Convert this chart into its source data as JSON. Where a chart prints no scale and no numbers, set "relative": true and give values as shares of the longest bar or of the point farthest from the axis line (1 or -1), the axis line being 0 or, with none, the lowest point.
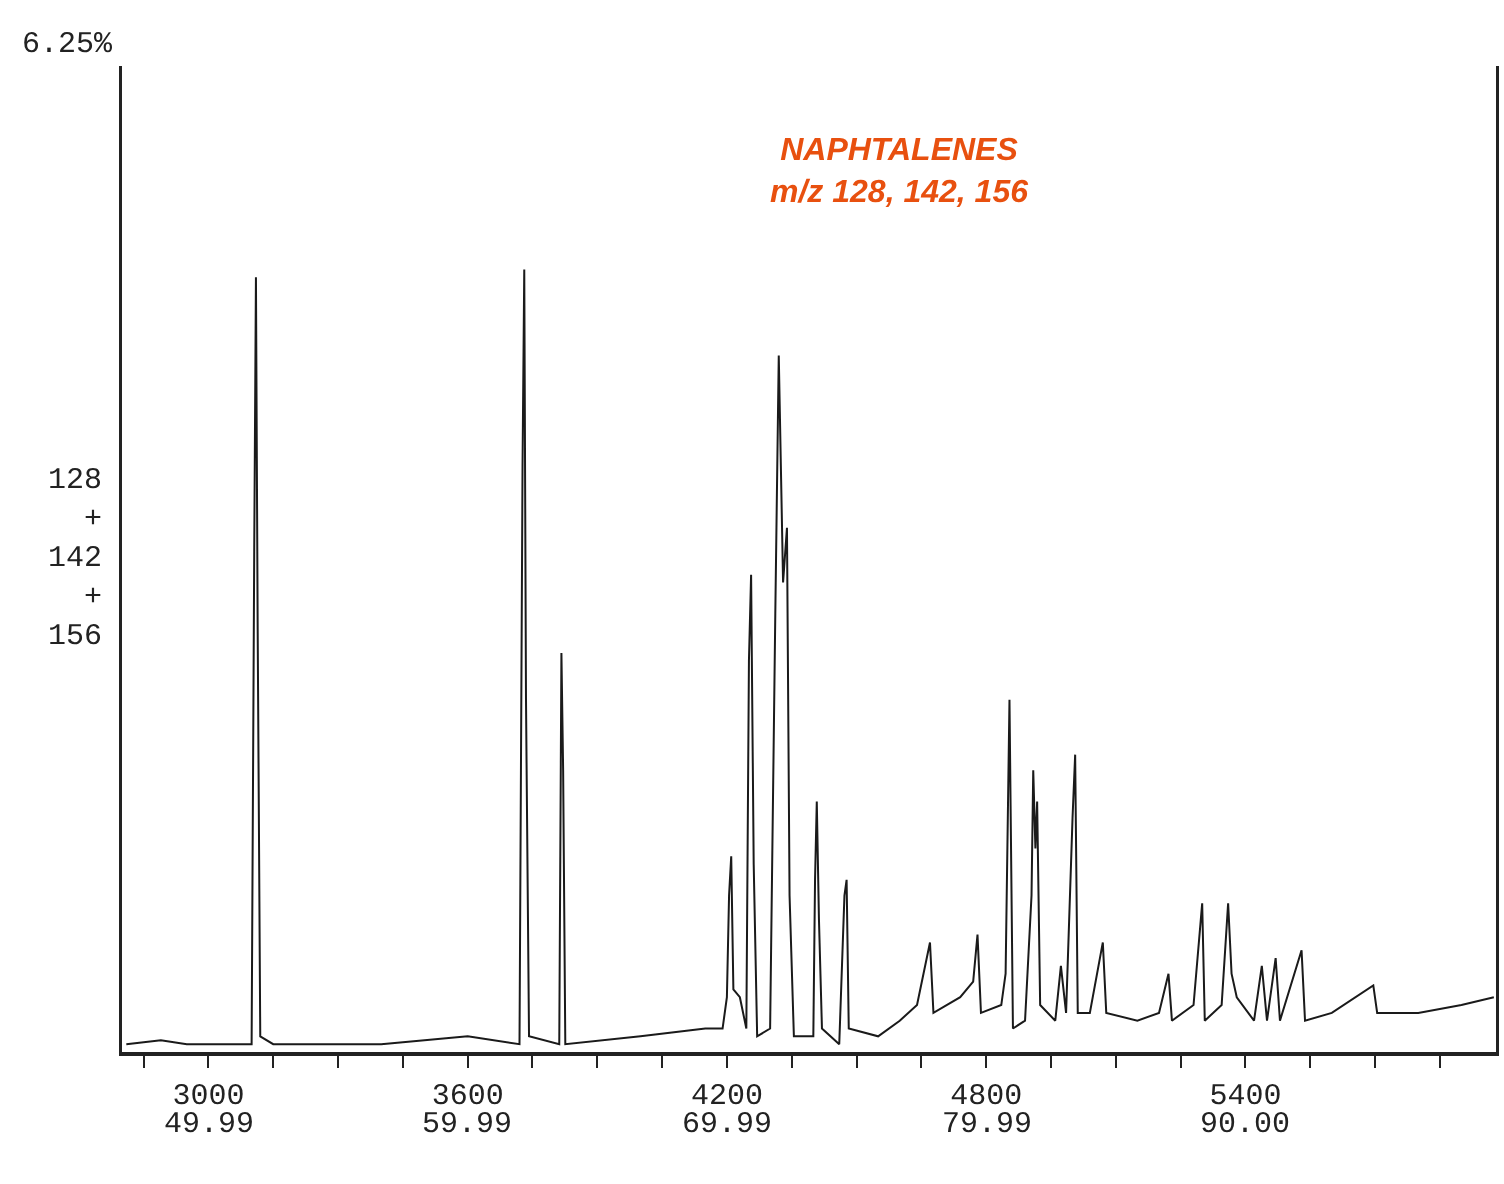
{
  "chart_data": {
    "type": "line",
    "title": "NAPHTALENES",
    "subtitle": "m/z 128, 142, 156",
    "ylabel": "128\n+\n142\n+\n156",
    "relative": true,
    "annotations": [
      "6.25%"
    ],
    "color": "#1a1a1a",
    "grid": false,
    "x2lim": [
      46.66,
      99.66
    ],
    "x2ticks": [
      49.99,
      59.99,
      69.99,
      79.99,
      {
        "value": 90.0,
        "label": "90.00"
      }
    ],
    "marker": "none",
    "line_style": "solid",
    "xlim": [
      2800,
      5980
    ],
    "xticks": [
      {
        "value": 2850,
        "label": null
      },
      3000,
      {
        "value": 3150,
        "label": null
      },
      {
        "value": 3300,
        "label": null
      },
      {
        "value": 3450,
        "label": null
      },
      3600,
      {
        "value": 3750,
        "label": null
      },
      {
        "value": 3900,
        "label": null
      },
      {
        "value": 4050,
        "label": null
      },
      4200,
      {
        "value": 4350,
        "label": null
      },
      {
        "value": 4500,
        "label": null
      },
      {
        "value": 4650,
        "label": null
      },
      4800,
      {
        "value": 4950,
        "label": null
      },
      {
        "value": 5100,
        "label": null
      },
      {
        "value": 5250,
        "label": null
      },
      5400,
      {
        "value": 5550,
        "label": null
      },
      {
        "value": 5700,
        "label": null
      },
      {
        "value": 5850,
        "label": null
      }
    ],
    "x": [
      2810,
      2890,
      2950,
      3100,
      3106,
      3110,
      3114,
      3120,
      3150,
      3400,
      3600,
      3720,
      3727,
      3731,
      3735,
      3742,
      3812,
      3817,
      3821,
      3826,
      4000,
      4150,
      4190,
      4200,
      4205,
      4210,
      4215,
      4230,
      4245,
      4251,
      4256,
      4262,
      4270,
      4300,
      4312,
      4320,
      4330,
      4339,
      4345,
      4355,
      4400,
      4404,
      4408,
      4413,
      4420,
      4460,
      4472,
      4477,
      4482,
      4550,
      4600,
      4640,
      4670,
      4678,
      4740,
      4770,
      4780,
      4788,
      4835,
      4845,
      4854,
      4862,
      4890,
      4905,
      4909,
      4914,
      4918,
      4925,
      4960,
      4973,
      4985,
      5000,
      5006,
      5012,
      5040,
      5070,
      5078,
      5150,
      5200,
      5222,
      5230,
      5280,
      5300,
      5306,
      5345,
      5360,
      5368,
      5380,
      5420,
      5438,
      5450,
      5470,
      5480,
      5530,
      5538,
      5600,
      5696,
      5705,
      5800,
      5900,
      5975
    ],
    "values": [
      0.01,
      0.015,
      0.01,
      0.01,
      0.64,
      0.99,
      0.54,
      0.02,
      0.01,
      0.01,
      0.02,
      0.01,
      0.75,
      1.0,
      0.45,
      0.02,
      0.01,
      0.51,
      0.36,
      0.01,
      0.02,
      0.03,
      0.03,
      0.07,
      0.2,
      0.25,
      0.08,
      0.07,
      0.03,
      0.5,
      0.61,
      0.24,
      0.02,
      0.03,
      0.56,
      0.89,
      0.6,
      0.67,
      0.2,
      0.02,
      0.02,
      0.22,
      0.32,
      0.17,
      0.03,
      0.01,
      0.2,
      0.22,
      0.03,
      0.02,
      0.04,
      0.06,
      0.14,
      0.05,
      0.07,
      0.09,
      0.15,
      0.05,
      0.06,
      0.1,
      0.45,
      0.03,
      0.04,
      0.2,
      0.36,
      0.26,
      0.32,
      0.06,
      0.04,
      0.11,
      0.05,
      0.3,
      0.38,
      0.05,
      0.05,
      0.14,
      0.05,
      0.04,
      0.05,
      0.1,
      0.04,
      0.06,
      0.19,
      0.04,
      0.06,
      0.19,
      0.1,
      0.07,
      0.04,
      0.11,
      0.04,
      0.12,
      0.04,
      0.13,
      0.04,
      0.05,
      0.085,
      0.05,
      0.05,
      0.06,
      0.07
    ]
  }
}
